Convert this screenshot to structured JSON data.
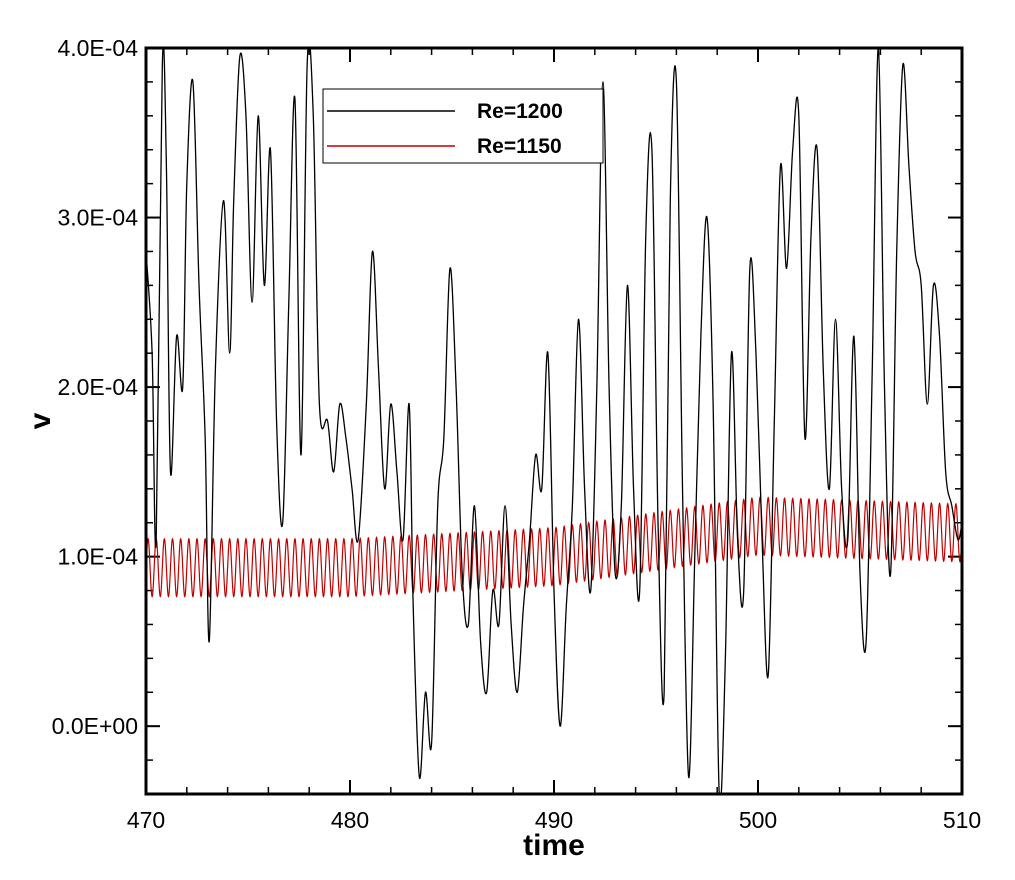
{
  "chart_data": {
    "type": "line",
    "title": "",
    "xlabel": "time",
    "ylabel": "v",
    "xlim": [
      470,
      510
    ],
    "ylim": [
      -4e-05,
      0.0004
    ],
    "grid": false,
    "legend_position": "top-left-inset",
    "x_ticks": [
      470,
      480,
      490,
      500,
      510
    ],
    "x_tick_labels": [
      "470",
      "480",
      "490",
      "500",
      "510"
    ],
    "y_ticks": [
      0.0,
      0.0001,
      0.0002,
      0.0003,
      0.0004
    ],
    "y_tick_labels": [
      "0.0E+00",
      "1.0E-04",
      "2.0E-04",
      "3.0E-04",
      "4.0E-04"
    ],
    "series": [
      {
        "name": "Re=1200",
        "color": "#000000",
        "style": "irregular",
        "x": [
          470.0,
          470.3,
          470.5,
          470.8,
          471.0,
          471.2,
          471.5,
          471.8,
          472.0,
          472.3,
          472.6,
          472.9,
          473.1,
          473.4,
          473.8,
          474.1,
          474.3,
          474.6,
          474.9,
          475.2,
          475.5,
          475.8,
          476.1,
          476.4,
          476.7,
          477.0,
          477.3,
          477.6,
          477.9,
          478.2,
          478.5,
          478.9,
          479.2,
          479.5,
          479.8,
          480.1,
          480.4,
          480.8,
          481.1,
          481.4,
          481.7,
          482.0,
          482.3,
          482.6,
          482.9,
          483.1,
          483.4,
          483.7,
          484.0,
          484.3,
          484.6,
          484.9,
          485.2,
          485.5,
          485.8,
          486.1,
          486.4,
          486.7,
          487.0,
          487.3,
          487.6,
          487.9,
          488.2,
          488.5,
          488.8,
          489.1,
          489.4,
          489.7,
          490.0,
          490.3,
          490.6,
          490.9,
          491.2,
          491.5,
          491.8,
          492.1,
          492.4,
          492.7,
          493.0,
          493.3,
          493.6,
          493.9,
          494.2,
          494.5,
          494.8,
          495.1,
          495.4,
          495.7,
          496.0,
          496.3,
          496.6,
          496.9,
          497.2,
          497.5,
          497.8,
          498.1,
          498.4,
          498.7,
          499.0,
          499.3,
          499.6,
          499.9,
          500.2,
          500.5,
          500.8,
          501.1,
          501.4,
          501.7,
          502.0,
          502.3,
          502.6,
          502.9,
          503.2,
          503.5,
          503.8,
          504.1,
          504.4,
          504.7,
          505.0,
          505.3,
          505.6,
          505.9,
          506.2,
          506.5,
          506.8,
          507.1,
          507.4,
          507.7,
          508.0,
          508.3,
          508.6,
          508.9,
          509.2,
          509.5,
          509.8,
          510.0
        ],
        "y": [
          0.00028,
          0.00022,
          0.00011,
          0.00039,
          0.00033,
          0.00015,
          0.00023,
          0.0002,
          0.00032,
          0.00038,
          0.00026,
          0.00017,
          5e-05,
          0.00021,
          0.00031,
          0.00022,
          0.00031,
          0.000395,
          0.00036,
          0.00025,
          0.00036,
          0.00026,
          0.00034,
          0.00018,
          0.00012,
          0.00025,
          0.00037,
          0.00016,
          0.00039,
          0.00036,
          0.00019,
          0.00018,
          0.00015,
          0.00019,
          0.00017,
          0.00014,
          0.00011,
          0.00019,
          0.00028,
          0.00021,
          0.00014,
          0.00019,
          0.00015,
          0.00011,
          0.00019,
          7e-05,
          -3e-05,
          2e-05,
          -1e-05,
          0.00013,
          0.00017,
          0.00027,
          0.0002,
          9e-05,
          6e-05,
          0.00013,
          5e-05,
          2e-05,
          8e-05,
          6e-05,
          0.00013,
          6e-05,
          2e-05,
          7e-05,
          0.00011,
          0.00016,
          0.00014,
          0.00022,
          8e-05,
          0.0,
          7e-05,
          0.00013,
          0.00024,
          0.00014,
          8e-05,
          0.0002,
          0.00038,
          0.0002,
          9e-05,
          0.00013,
          0.00026,
          0.00014,
          8e-05,
          0.00029,
          0.00034,
          0.00012,
          2e-05,
          0.00031,
          0.00038,
          0.00014,
          -3e-05,
          0.0001,
          0.00023,
          0.0003,
          0.00019,
          -4e-05,
          4e-05,
          0.00022,
          0.00011,
          8e-05,
          0.00027,
          0.00022,
          0.00011,
          3e-05,
          0.00018,
          0.00033,
          0.00027,
          0.00034,
          0.00036,
          0.00017,
          0.00029,
          0.00034,
          0.00021,
          0.00014,
          0.00024,
          0.00014,
          0.00011,
          0.00023,
          9e-05,
          5e-05,
          0.00021,
          0.0004,
          0.0002,
          9e-05,
          0.00028,
          0.00039,
          0.00033,
          0.00028,
          0.00026,
          0.00019,
          0.00026,
          0.00023,
          0.00015,
          0.00013,
          0.00011,
          0.00012
        ]
      },
      {
        "name": "Re=1150",
        "color": "#c00000",
        "style": "oscillation",
        "center_points": [
          [
            470,
            9.35e-05
          ],
          [
            480,
            9.35e-05
          ],
          [
            490,
            0.0001
          ],
          [
            500,
            0.000118
          ],
          [
            510,
            0.000114
          ]
        ],
        "amplitude": 1.7e-05,
        "period": 0.4
      }
    ]
  }
}
